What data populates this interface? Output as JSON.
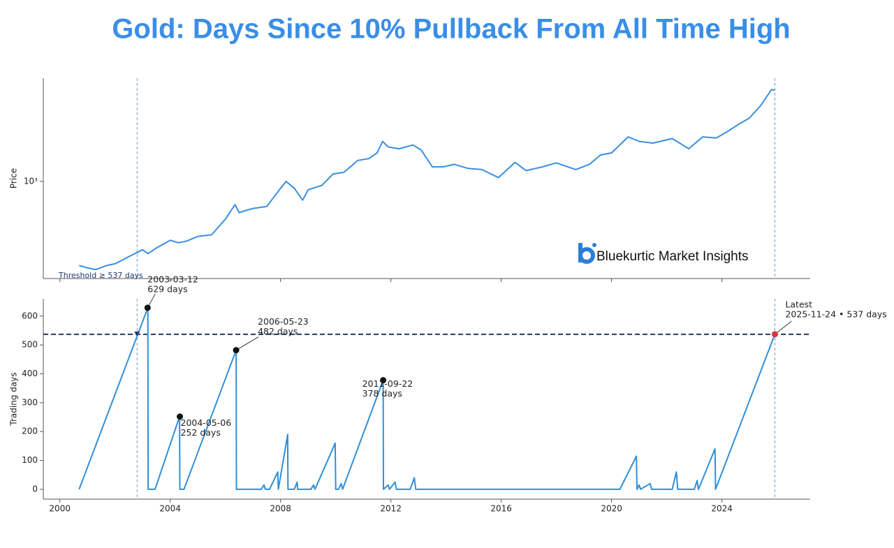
{
  "title": "Gold: Days Since 10% Pullback From All Time High",
  "logo": "Bluekurtic Market Insights",
  "chart_data": [
    {
      "type": "line",
      "y_label": "Price",
      "yscale": "log",
      "color": "#3a8ee0",
      "xlim": [
        1999.4,
        2027.2
      ],
      "xticks": [
        2000,
        2004,
        2008,
        2012,
        2016,
        2020,
        2024
      ],
      "ylim": [
        225,
        4880
      ],
      "yticks": [
        {
          "value": 1000,
          "label": "10³"
        }
      ],
      "x": [
        2000.7,
        2001.0,
        2001.3,
        2001.7,
        2002.0,
        2002.5,
        2003.0,
        2003.2,
        2003.5,
        2004.0,
        2004.3,
        2004.6,
        2005.0,
        2005.5,
        2006.0,
        2006.35,
        2006.5,
        2007.0,
        2007.5,
        2008.0,
        2008.2,
        2008.5,
        2008.8,
        2009.0,
        2009.5,
        2009.9,
        2010.3,
        2010.8,
        2011.2,
        2011.5,
        2011.7,
        2011.9,
        2012.3,
        2012.8,
        2013.1,
        2013.5,
        2013.9,
        2014.3,
        2014.8,
        2015.3,
        2015.9,
        2016.5,
        2016.9,
        2017.5,
        2018.0,
        2018.7,
        2019.2,
        2019.6,
        2020.0,
        2020.6,
        2021.0,
        2021.5,
        2022.2,
        2022.8,
        2023.3,
        2023.8,
        2024.2,
        2024.6,
        2025.0,
        2025.4,
        2025.8,
        2025.92
      ],
      "values": [
        275,
        265,
        258,
        275,
        282,
        315,
        350,
        330,
        360,
        405,
        390,
        400,
        430,
        440,
        560,
        700,
        620,
        660,
        680,
        900,
        1000,
        900,
        750,
        880,
        940,
        1120,
        1150,
        1380,
        1420,
        1550,
        1850,
        1700,
        1650,
        1750,
        1620,
        1250,
        1250,
        1300,
        1220,
        1200,
        1060,
        1340,
        1180,
        1250,
        1330,
        1200,
        1300,
        1500,
        1550,
        1980,
        1850,
        1800,
        1930,
        1650,
        1980,
        1950,
        2150,
        2400,
        2650,
        3200,
        4100,
        4050
      ]
    },
    {
      "type": "line",
      "y_label": "Trading days",
      "color": "#2f8fd8",
      "xlim": [
        1999.4,
        2027.2
      ],
      "xticks": [
        2000,
        2004,
        2008,
        2012,
        2016,
        2020,
        2024
      ],
      "ylim": [
        -34,
        660
      ],
      "yticks": [
        0,
        100,
        200,
        300,
        400,
        500,
        600
      ],
      "x": [
        2000.7,
        2003.19,
        2003.2,
        2003.45,
        2004.34,
        2004.35,
        2004.5,
        2006.39,
        2006.4,
        2007.3,
        2007.4,
        2007.45,
        2007.6,
        2007.9,
        2007.92,
        2008.26,
        2008.27,
        2008.5,
        2008.6,
        2008.62,
        2009.1,
        2009.2,
        2009.25,
        2009.98,
        2010.0,
        2010.1,
        2010.2,
        2010.25,
        2011.72,
        2011.73,
        2011.9,
        2011.95,
        2012.15,
        2012.2,
        2012.7,
        2012.85,
        2012.9,
        2020.3,
        2020.9,
        2020.92,
        2021.0,
        2021.05,
        2021.4,
        2021.45,
        2022.2,
        2022.35,
        2022.4,
        2023.0,
        2023.1,
        2023.15,
        2023.75,
        2023.77,
        2025.92
      ],
      "values": [
        0,
        629,
        0,
        0,
        252,
        0,
        0,
        482,
        0,
        0,
        15,
        0,
        0,
        60,
        0,
        190,
        0,
        0,
        25,
        0,
        0,
        15,
        0,
        160,
        0,
        0,
        20,
        0,
        378,
        0,
        15,
        0,
        25,
        0,
        0,
        40,
        0,
        0,
        115,
        0,
        15,
        0,
        20,
        0,
        0,
        60,
        0,
        0,
        30,
        0,
        140,
        0,
        537
      ],
      "threshold": {
        "value": 537,
        "label": "Threshold ≥ 537 days",
        "color": "#1f3a6e"
      },
      "vlines": [
        2002.8,
        2025.92
      ],
      "crossing": {
        "x": 2002.8,
        "y": 537
      },
      "annotations": [
        {
          "x": 2003.18,
          "y": 629,
          "lines": [
            "2003-03-12",
            "629 days"
          ],
          "color": "#111111"
        },
        {
          "x": 2004.35,
          "y": 252,
          "lines": [
            "2004-05-06",
            "252 days"
          ],
          "color": "#111111"
        },
        {
          "x": 2006.39,
          "y": 482,
          "lines": [
            "2006-05-23",
            "482 days"
          ],
          "color": "#111111"
        },
        {
          "x": 2011.72,
          "y": 378,
          "lines": [
            "2011-09-22",
            "378 days"
          ],
          "color": "#111111"
        },
        {
          "x": 2025.92,
          "y": 537,
          "lines": [
            "Latest",
            "2025-11-24 • 537 days"
          ],
          "color": "#d9363e"
        }
      ]
    }
  ]
}
